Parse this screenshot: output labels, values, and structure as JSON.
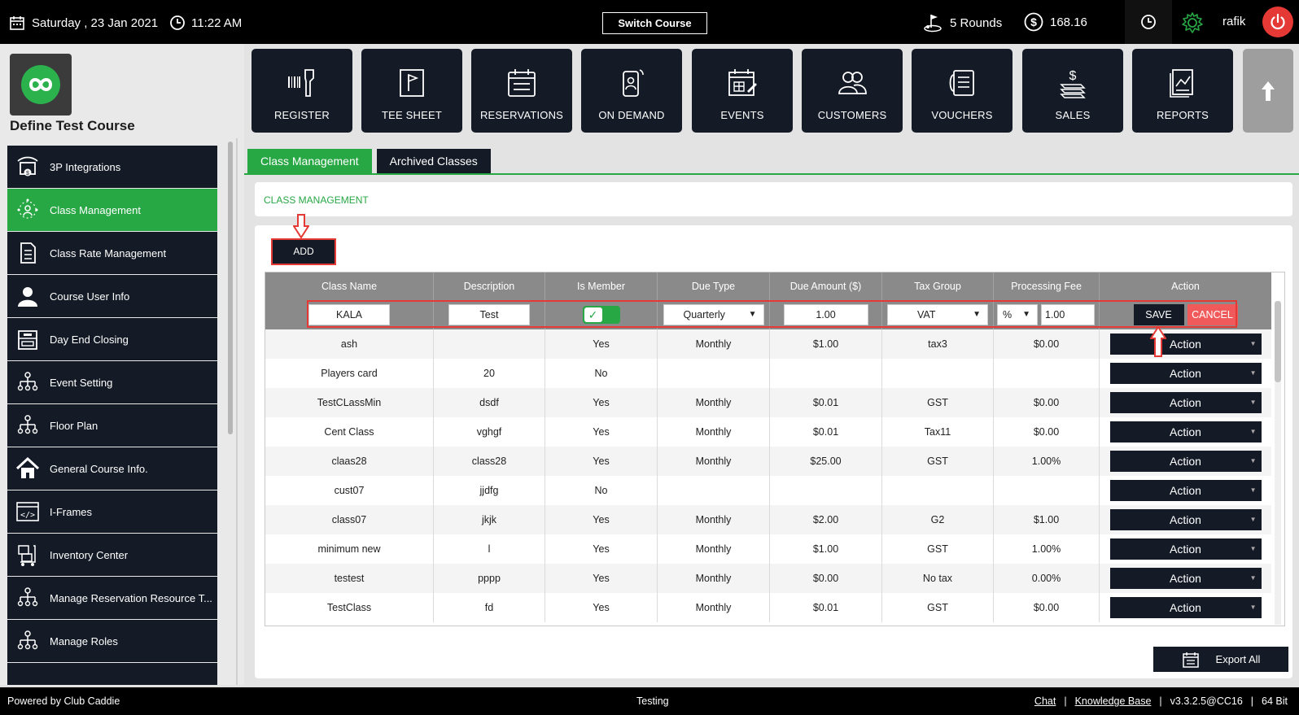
{
  "topbar": {
    "date": "Saturday , 23 Jan 2021",
    "time": "11:22 AM",
    "switch_course": "Switch Course",
    "rounds": "5 Rounds",
    "balance": "168.16",
    "username": "rafik"
  },
  "course": {
    "name": "Define Test Course"
  },
  "nav": [
    {
      "label": "REGISTER",
      "icon": "scanner-icon"
    },
    {
      "label": "TEE SHEET",
      "icon": "flag-icon"
    },
    {
      "label": "RESERVATIONS",
      "icon": "calendar-list-icon"
    },
    {
      "label": "ON DEMAND",
      "icon": "mobile-user-icon"
    },
    {
      "label": "EVENTS",
      "icon": "event-calendar-icon"
    },
    {
      "label": "CUSTOMERS",
      "icon": "users-icon"
    },
    {
      "label": "VOUCHERS",
      "icon": "voucher-icon"
    },
    {
      "label": "SALES",
      "icon": "dollar-stack-icon"
    },
    {
      "label": "REPORTS",
      "icon": "report-chart-icon"
    }
  ],
  "sidebar": {
    "items": [
      {
        "label": "3P Integrations"
      },
      {
        "label": "Class Management"
      },
      {
        "label": "Class Rate Management"
      },
      {
        "label": "Course User Info"
      },
      {
        "label": "Day End Closing"
      },
      {
        "label": "Event Setting"
      },
      {
        "label": "Floor Plan"
      },
      {
        "label": "General Course Info."
      },
      {
        "label": "I-Frames"
      },
      {
        "label": "Inventory Center"
      },
      {
        "label": "Manage Reservation Resource T..."
      },
      {
        "label": "Manage Roles"
      }
    ]
  },
  "tabs": [
    "Class Management",
    "Archived Classes"
  ],
  "section_title": "CLASS MANAGEMENT",
  "add_label": "ADD",
  "table": {
    "headers": [
      "Class Name",
      "Description",
      "Is Member",
      "Due Type",
      "Due Amount ($)",
      "Tax Group",
      "Processing Fee",
      "Action"
    ],
    "edit_row": {
      "class_name": "KALA",
      "description": "Test",
      "due_type": "Quarterly",
      "due_amount": "1.00",
      "tax_group": "VAT",
      "fee_type": "%",
      "fee_value": "1.00",
      "save": "SAVE",
      "cancel": "CANCEL"
    },
    "rows": [
      [
        "ash",
        "",
        "Yes",
        "Monthly",
        "$1.00",
        "tax3",
        "$0.00"
      ],
      [
        "Players card",
        "20",
        "No",
        "",
        "",
        "",
        ""
      ],
      [
        "TestCLassMin",
        "dsdf",
        "Yes",
        "Monthly",
        "$0.01",
        "GST",
        "$0.00"
      ],
      [
        "Cent Class",
        "vghgf",
        "Yes",
        "Monthly",
        "$0.01",
        "Tax11",
        "$0.00"
      ],
      [
        "claas28",
        "class28",
        "Yes",
        "Monthly",
        "$25.00",
        "GST",
        "1.00%"
      ],
      [
        "cust07",
        "jjdfg",
        "No",
        "",
        "",
        "",
        ""
      ],
      [
        "class07",
        "jkjk",
        "Yes",
        "Monthly",
        "$2.00",
        "G2",
        "$1.00"
      ],
      [
        "minimum new",
        "l",
        "Yes",
        "Monthly",
        "$1.00",
        "GST",
        "1.00%"
      ],
      [
        "testest",
        "pppp",
        "Yes",
        "Monthly",
        "$0.00",
        "No tax",
        "0.00%"
      ],
      [
        "TestClass",
        "fd",
        "Yes",
        "Monthly",
        "$0.01",
        "GST",
        "$0.00"
      ]
    ],
    "action_label": "Action"
  },
  "export_label": "Export All",
  "footer": {
    "powered": "Powered by Club Caddie",
    "env": "Testing",
    "chat": "Chat",
    "sep": "|",
    "kb": "Knowledge Base",
    "version": "v3.3.2.5@CC16",
    "bits": "64 Bit"
  },
  "colors": {
    "accent": "#28a745",
    "dark": "#141b26",
    "danger": "#e53935"
  }
}
